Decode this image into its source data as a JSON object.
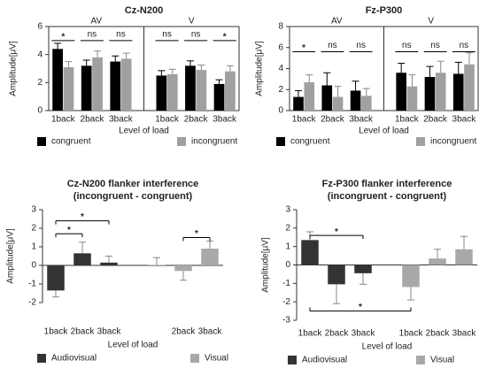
{
  "chart_data": [
    {
      "type": "grouped_bar",
      "title": "Cz-N200",
      "ylabel": "Amplitude[μV]",
      "xlabel": "Level of load",
      "groups": [
        "AV",
        "V"
      ],
      "categories": [
        "1back",
        "2back",
        "3back",
        "1back",
        "2back",
        "3back"
      ],
      "series": [
        {
          "name": "congruent",
          "color": "#000000",
          "values": [
            4.4,
            3.2,
            3.5,
            2.5,
            3.2,
            1.9
          ],
          "errors": [
            0.4,
            0.4,
            0.4,
            0.35,
            0.35,
            0.3
          ]
        },
        {
          "name": "incongruent",
          "color": "#a0a0a0",
          "values": [
            3.1,
            3.8,
            3.7,
            2.6,
            2.9,
            2.8
          ],
          "errors": [
            0.4,
            0.45,
            0.4,
            0.35,
            0.35,
            0.4
          ]
        }
      ],
      "ylim": [
        0,
        6
      ],
      "yticks": [
        0,
        2,
        4,
        6
      ],
      "annotations": [
        {
          "text": "*",
          "from": 0,
          "to": 0,
          "y": 5
        },
        {
          "text": "ns",
          "from": 1,
          "to": 1,
          "y": 5
        },
        {
          "text": "ns",
          "from": 2,
          "to": 2,
          "y": 5
        },
        {
          "text": "ns",
          "from": 3,
          "to": 3,
          "y": 5
        },
        {
          "text": "ns",
          "from": 4,
          "to": 4,
          "y": 5
        },
        {
          "text": "*",
          "from": 5,
          "to": 5,
          "y": 5
        }
      ]
    },
    {
      "type": "grouped_bar",
      "title": "Fz-P300",
      "ylabel": "Amplitude[μV]",
      "xlabel": "Level of load",
      "groups": [
        "AV",
        "V"
      ],
      "categories": [
        "1back",
        "2back",
        "3back",
        "1back",
        "2back",
        "3back"
      ],
      "series": [
        {
          "name": "congruent",
          "color": "#000000",
          "values": [
            1.3,
            2.4,
            1.9,
            3.6,
            3.2,
            3.5
          ],
          "errors": [
            0.6,
            1.2,
            0.9,
            0.9,
            1.0,
            1.1
          ]
        },
        {
          "name": "incongruent",
          "color": "#a0a0a0",
          "values": [
            2.7,
            1.3,
            1.4,
            2.3,
            3.6,
            4.4
          ],
          "errors": [
            0.7,
            1.0,
            0.7,
            1.1,
            1.1,
            1.1
          ]
        }
      ],
      "ylim": [
        0,
        8
      ],
      "yticks": [
        0,
        2,
        4,
        6,
        8
      ],
      "annotations": [
        {
          "text": "*",
          "from": 0,
          "to": 0,
          "y": 5.6
        },
        {
          "text": "ns",
          "from": 1,
          "to": 1,
          "y": 5.6
        },
        {
          "text": "ns",
          "from": 2,
          "to": 2,
          "y": 5.6
        },
        {
          "text": "ns",
          "from": 3,
          "to": 3,
          "y": 5.6
        },
        {
          "text": "ns",
          "from": 4,
          "to": 4,
          "y": 5.6
        },
        {
          "text": "ns",
          "from": 5,
          "to": 5,
          "y": 5.6
        }
      ]
    },
    {
      "type": "bar",
      "title": [
        "Cz-N200 flanker interference",
        "(incongruent - congruent)"
      ],
      "ylabel": "Amplitude[μV]",
      "xlabel": "Level of load",
      "categories": [
        "1back",
        "2back",
        "3back",
        null,
        "2back",
        "3back"
      ],
      "series": [
        {
          "name": "Audiovisual",
          "color": "#333333",
          "values": [
            -1.35,
            0.65,
            0.15,
            null,
            null,
            null
          ],
          "errors": [
            0.35,
            0.6,
            0.35,
            null,
            null,
            null
          ]
        },
        {
          "name": "Visual",
          "color": "#a8a8a8",
          "values": [
            null,
            null,
            null,
            0.02,
            -0.3,
            0.9
          ],
          "errors": [
            null,
            null,
            null,
            0.4,
            0.5,
            0.4
          ]
        }
      ],
      "ylim": [
        -2,
        3
      ],
      "yticks": [
        -2,
        -1,
        0,
        1,
        2,
        3
      ],
      "annotations": [
        {
          "text": "*",
          "from": 0,
          "to": 2,
          "y": 2.4
        },
        {
          "text": "*",
          "from": 0,
          "to": 1,
          "y": 1.7
        },
        {
          "text": "*",
          "from": 4,
          "to": 5,
          "y": 1.5
        }
      ]
    },
    {
      "type": "bar",
      "title": [
        "Fz-P300 flanker interference",
        "(incongruent - congruent)"
      ],
      "ylabel": "Amplitude[μV]",
      "xlabel": "Level of load",
      "categories": [
        "1back",
        "2back",
        "3back",
        "1back",
        "2back",
        "3back"
      ],
      "series": [
        {
          "name": "Audiovisual",
          "color": "#333333",
          "values": [
            1.35,
            -1.05,
            -0.45,
            null,
            null,
            null
          ],
          "errors": [
            0.45,
            1.05,
            0.6,
            null,
            null,
            null
          ]
        },
        {
          "name": "Visual",
          "color": "#a8a8a8",
          "values": [
            null,
            null,
            null,
            -1.2,
            0.35,
            0.85
          ],
          "errors": [
            null,
            null,
            null,
            0.7,
            0.5,
            0.7
          ]
        }
      ],
      "ylim": [
        -3,
        3
      ],
      "yticks": [
        -3,
        -2,
        -1,
        0,
        1,
        2,
        3
      ],
      "annotations": [
        {
          "text": "*",
          "from": 0,
          "to": 2,
          "y": 1.6
        },
        {
          "text": "*",
          "from": 0,
          "to": 3,
          "y": -2.5
        }
      ]
    }
  ]
}
